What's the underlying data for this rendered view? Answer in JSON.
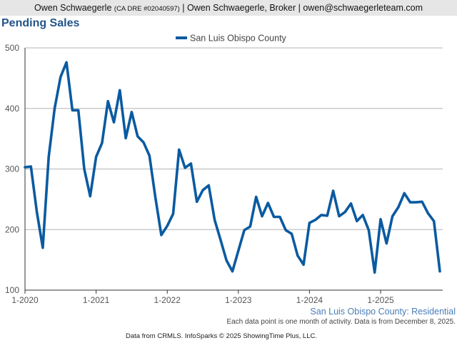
{
  "header": {
    "name": "Owen Schwaegerle",
    "license": "(CA DRE #02040597)",
    "rest": "| Owen Schwaegerle, Broker | owen@schwaegerleteam.com"
  },
  "colors": {
    "series": "#0a5aa0",
    "title": "#235589",
    "grid": "#b4b4b4",
    "header_bg": "#e6e6e6"
  },
  "chart_data": {
    "type": "line",
    "title": "Pending Sales",
    "xlabel": "",
    "ylabel": "",
    "ylim": [
      100,
      500
    ],
    "yticks": [
      "100",
      "200",
      "300",
      "400",
      "500"
    ],
    "xticks": [
      "1-2020",
      "1-2021",
      "1-2022",
      "1-2023",
      "1-2024",
      "1-2025"
    ],
    "grid": true,
    "legend_position": "top-center",
    "x_start": "2020-01",
    "x_end": "2025-11",
    "series": [
      {
        "name": "San Luis Obispo County",
        "values": [
          303,
          304,
          229,
          170,
          320,
          400,
          452,
          476,
          397,
          397,
          300,
          255,
          320,
          343,
          412,
          377,
          430,
          351,
          394,
          354,
          344,
          322,
          253,
          191,
          206,
          226,
          332,
          302,
          309,
          246,
          265,
          273,
          216,
          183,
          149,
          131,
          165,
          199,
          205,
          254,
          222,
          244,
          221,
          221,
          199,
          193,
          157,
          142,
          211,
          216,
          224,
          223,
          264,
          222,
          229,
          243,
          214,
          224,
          199,
          129,
          217,
          177,
          222,
          237,
          260,
          245,
          245,
          246,
          227,
          214,
          131
        ]
      }
    ]
  },
  "region_label": "San Luis Obispo County: Residential",
  "note": "Each data point is one month of activity. Data is from December 8, 2025.",
  "footer": "Data from CRMLS. InfoSparks © 2025 ShowingTime Plus, LLC."
}
